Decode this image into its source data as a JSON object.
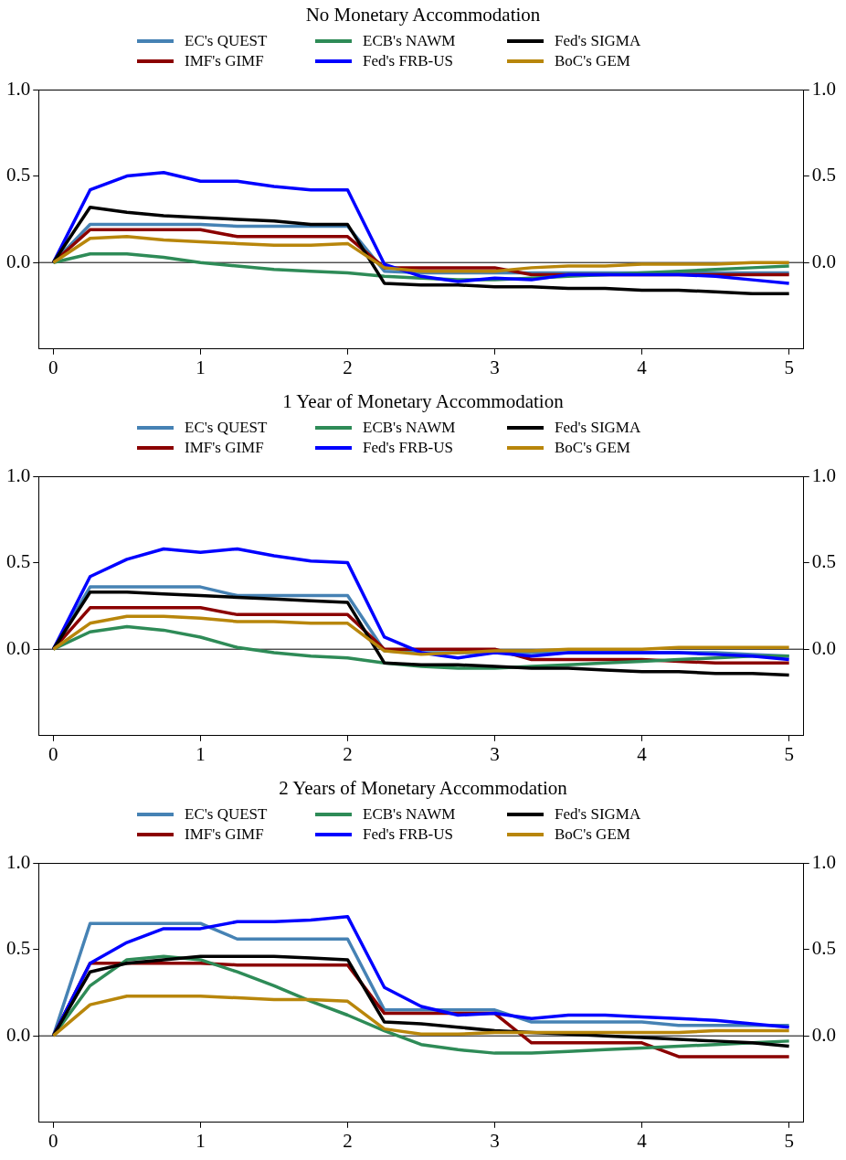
{
  "chart_data": [
    {
      "type": "line",
      "title": "No Monetary Accommodation",
      "x": [
        0,
        0.25,
        0.5,
        0.75,
        1,
        1.25,
        1.5,
        1.75,
        2,
        2.25,
        2.5,
        2.75,
        3,
        3.25,
        3.5,
        3.75,
        4,
        4.25,
        4.5,
        4.75,
        5
      ],
      "xlim": [
        -0.1,
        5.1
      ],
      "xticks": [
        0,
        1,
        2,
        3,
        4,
        5
      ],
      "ylim": [
        -0.5,
        1
      ],
      "yticks": [
        {
          "value": 0,
          "label": "0.0"
        },
        {
          "value": 0.5,
          "label": "0.5"
        },
        {
          "value": 1,
          "label": "1.0"
        }
      ],
      "y2lim": [
        -0.5,
        1
      ],
      "y2ticks": [
        {
          "value": 0,
          "label": "0.0"
        },
        {
          "value": 0.5,
          "label": "0.5"
        },
        {
          "value": 1,
          "label": "1.0"
        }
      ],
      "grid": false,
      "legend": "top",
      "marker": "none",
      "line_style": "solid",
      "ref_lines": [
        {
          "axis": "y",
          "value": 0,
          "color": "#000000"
        }
      ],
      "series": [
        {
          "name": "EC's QUEST",
          "color": "#4682b4",
          "values": [
            0,
            0.22,
            0.22,
            0.22,
            0.22,
            0.21,
            0.21,
            0.21,
            0.21,
            -0.05,
            -0.06,
            -0.06,
            -0.06,
            -0.06,
            -0.06,
            -0.06,
            -0.06,
            -0.06,
            -0.06,
            -0.06,
            -0.06
          ]
        },
        {
          "name": "IMF's GIMF",
          "color": "#8b0000",
          "values": [
            0,
            0.19,
            0.19,
            0.19,
            0.19,
            0.15,
            0.15,
            0.15,
            0.15,
            -0.03,
            -0.03,
            -0.03,
            -0.03,
            -0.07,
            -0.07,
            -0.07,
            -0.07,
            -0.07,
            -0.07,
            -0.07,
            -0.07
          ]
        },
        {
          "name": "ECB's NAWM",
          "color": "#2e8b57",
          "values": [
            0,
            0.05,
            0.05,
            0.03,
            0,
            -0.02,
            -0.04,
            -0.05,
            -0.06,
            -0.08,
            -0.09,
            -0.1,
            -0.1,
            -0.09,
            -0.08,
            -0.07,
            -0.06,
            -0.05,
            -0.04,
            -0.03,
            -0.02
          ]
        },
        {
          "name": "Fed's FRB-US",
          "color": "#0000ff",
          "values": [
            0,
            0.42,
            0.5,
            0.52,
            0.47,
            0.47,
            0.44,
            0.42,
            0.42,
            -0.01,
            -0.08,
            -0.11,
            -0.09,
            -0.1,
            -0.07,
            -0.07,
            -0.07,
            -0.07,
            -0.08,
            -0.1,
            -0.12
          ]
        },
        {
          "name": "Fed's SIGMA",
          "color": "#000000",
          "values": [
            0,
            0.32,
            0.29,
            0.27,
            0.26,
            0.25,
            0.24,
            0.22,
            0.22,
            -0.12,
            -0.13,
            -0.13,
            -0.14,
            -0.14,
            -0.15,
            -0.15,
            -0.16,
            -0.16,
            -0.17,
            -0.18,
            -0.18
          ]
        },
        {
          "name": "BoC's GEM",
          "color": "#b8860b",
          "values": [
            0,
            0.14,
            0.15,
            0.13,
            0.12,
            0.11,
            0.1,
            0.1,
            0.11,
            -0.03,
            -0.05,
            -0.05,
            -0.05,
            -0.03,
            -0.02,
            -0.02,
            -0.01,
            -0.01,
            -0.01,
            0,
            0
          ]
        }
      ]
    },
    {
      "type": "line",
      "title": "1 Year of Monetary Accommodation",
      "x": [
        0,
        0.25,
        0.5,
        0.75,
        1,
        1.25,
        1.5,
        1.75,
        2,
        2.25,
        2.5,
        2.75,
        3,
        3.25,
        3.5,
        3.75,
        4,
        4.25,
        4.5,
        4.75,
        5
      ],
      "xlim": [
        -0.1,
        5.1
      ],
      "xticks": [
        0,
        1,
        2,
        3,
        4,
        5
      ],
      "ylim": [
        -0.5,
        1
      ],
      "yticks": [
        {
          "value": 0,
          "label": "0.0"
        },
        {
          "value": 0.5,
          "label": "0.5"
        },
        {
          "value": 1,
          "label": "1.0"
        }
      ],
      "y2lim": [
        -0.5,
        1
      ],
      "y2ticks": [
        {
          "value": 0,
          "label": "0.0"
        },
        {
          "value": 0.5,
          "label": "0.5"
        },
        {
          "value": 1,
          "label": "1.0"
        }
      ],
      "grid": false,
      "legend": "top",
      "marker": "none",
      "line_style": "solid",
      "ref_lines": [
        {
          "axis": "y",
          "value": 0,
          "color": "#000000"
        }
      ],
      "series": [
        {
          "name": "EC's QUEST",
          "color": "#4682b4",
          "values": [
            0,
            0.36,
            0.36,
            0.36,
            0.36,
            0.31,
            0.31,
            0.31,
            0.31,
            -0.01,
            -0.02,
            -0.02,
            -0.02,
            -0.02,
            -0.02,
            -0.02,
            -0.02,
            -0.02,
            -0.02,
            -0.03,
            -0.04
          ]
        },
        {
          "name": "IMF's GIMF",
          "color": "#8b0000",
          "values": [
            0,
            0.24,
            0.24,
            0.24,
            0.24,
            0.2,
            0.2,
            0.2,
            0.2,
            0,
            0,
            0,
            0,
            -0.06,
            -0.06,
            -0.06,
            -0.06,
            -0.07,
            -0.08,
            -0.08,
            -0.08
          ]
        },
        {
          "name": "ECB's NAWM",
          "color": "#2e8b57",
          "values": [
            0,
            0.1,
            0.13,
            0.11,
            0.07,
            0.01,
            -0.02,
            -0.04,
            -0.05,
            -0.08,
            -0.1,
            -0.11,
            -0.11,
            -0.1,
            -0.09,
            -0.08,
            -0.07,
            -0.06,
            -0.05,
            -0.04,
            -0.04
          ]
        },
        {
          "name": "Fed's FRB-US",
          "color": "#0000ff",
          "values": [
            0,
            0.42,
            0.52,
            0.58,
            0.56,
            0.58,
            0.54,
            0.51,
            0.5,
            0.07,
            -0.02,
            -0.05,
            -0.02,
            -0.04,
            -0.02,
            -0.02,
            -0.02,
            -0.02,
            -0.03,
            -0.04,
            -0.06
          ]
        },
        {
          "name": "Fed's SIGMA",
          "color": "#000000",
          "values": [
            0,
            0.33,
            0.33,
            0.32,
            0.31,
            0.3,
            0.29,
            0.28,
            0.27,
            -0.08,
            -0.09,
            -0.09,
            -0.1,
            -0.11,
            -0.11,
            -0.12,
            -0.13,
            -0.13,
            -0.14,
            -0.14,
            -0.15
          ]
        },
        {
          "name": "BoC's GEM",
          "color": "#b8860b",
          "values": [
            0,
            0.15,
            0.19,
            0.19,
            0.18,
            0.16,
            0.16,
            0.15,
            0.15,
            -0.01,
            -0.03,
            -0.02,
            -0.01,
            -0.01,
            0,
            0,
            0,
            0.01,
            0.01,
            0.01,
            0.01
          ]
        }
      ]
    },
    {
      "type": "line",
      "title": "2 Years of Monetary Accommodation",
      "x": [
        0,
        0.25,
        0.5,
        0.75,
        1,
        1.25,
        1.5,
        1.75,
        2,
        2.25,
        2.5,
        2.75,
        3,
        3.25,
        3.5,
        3.75,
        4,
        4.25,
        4.5,
        4.75,
        5
      ],
      "xlim": [
        -0.1,
        5.1
      ],
      "xticks": [
        0,
        1,
        2,
        3,
        4,
        5
      ],
      "ylim": [
        -0.5,
        1
      ],
      "yticks": [
        {
          "value": 0,
          "label": "0.0"
        },
        {
          "value": 0.5,
          "label": "0.5"
        },
        {
          "value": 1,
          "label": "1.0"
        }
      ],
      "y2lim": [
        -0.5,
        1
      ],
      "y2ticks": [
        {
          "value": 0,
          "label": "0.0"
        },
        {
          "value": 0.5,
          "label": "0.5"
        },
        {
          "value": 1,
          "label": "1.0"
        }
      ],
      "grid": false,
      "legend": "top",
      "marker": "none",
      "line_style": "solid",
      "ref_lines": [
        {
          "axis": "y",
          "value": 0,
          "color": "#000000"
        }
      ],
      "series": [
        {
          "name": "EC's QUEST",
          "color": "#4682b4",
          "values": [
            0,
            0.65,
            0.65,
            0.65,
            0.65,
            0.56,
            0.56,
            0.56,
            0.56,
            0.15,
            0.15,
            0.15,
            0.15,
            0.08,
            0.08,
            0.08,
            0.08,
            0.06,
            0.06,
            0.06,
            0.06
          ]
        },
        {
          "name": "IMF's GIMF",
          "color": "#8b0000",
          "values": [
            0,
            0.42,
            0.42,
            0.42,
            0.42,
            0.41,
            0.41,
            0.41,
            0.41,
            0.13,
            0.13,
            0.13,
            0.13,
            -0.04,
            -0.04,
            -0.04,
            -0.04,
            -0.12,
            -0.12,
            -0.12,
            -0.12
          ]
        },
        {
          "name": "ECB's NAWM",
          "color": "#2e8b57",
          "values": [
            0,
            0.29,
            0.44,
            0.46,
            0.44,
            0.37,
            0.29,
            0.2,
            0.12,
            0.03,
            -0.05,
            -0.08,
            -0.1,
            -0.1,
            -0.09,
            -0.08,
            -0.07,
            -0.06,
            -0.05,
            -0.04,
            -0.03
          ]
        },
        {
          "name": "Fed's FRB-US",
          "color": "#0000ff",
          "values": [
            0,
            0.42,
            0.54,
            0.62,
            0.62,
            0.66,
            0.66,
            0.67,
            0.69,
            0.28,
            0.17,
            0.12,
            0.13,
            0.1,
            0.12,
            0.12,
            0.11,
            0.1,
            0.09,
            0.07,
            0.05
          ]
        },
        {
          "name": "Fed's SIGMA",
          "color": "#000000",
          "values": [
            0,
            0.37,
            0.42,
            0.44,
            0.46,
            0.46,
            0.46,
            0.45,
            0.44,
            0.08,
            0.07,
            0.05,
            0.03,
            0.02,
            0.01,
            0,
            -0.01,
            -0.02,
            -0.03,
            -0.04,
            -0.06
          ]
        },
        {
          "name": "BoC's GEM",
          "color": "#b8860b",
          "values": [
            0,
            0.18,
            0.23,
            0.23,
            0.23,
            0.22,
            0.21,
            0.21,
            0.2,
            0.04,
            0.01,
            0.01,
            0.02,
            0.02,
            0.02,
            0.02,
            0.02,
            0.02,
            0.03,
            0.03,
            0.03
          ]
        }
      ]
    }
  ]
}
